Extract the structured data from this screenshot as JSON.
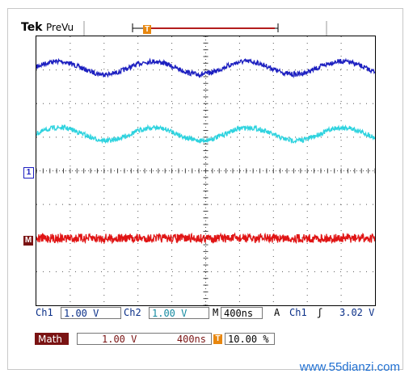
{
  "header": {
    "brand": "Tek",
    "mode": "PreVu"
  },
  "markers": {
    "trigger": "T",
    "ch1": "1",
    "math": "M"
  },
  "status": {
    "ch1_label": "Ch1",
    "ch1_scale": "1.00 V",
    "ch2_label": "Ch2",
    "ch2_scale": "1.00 V",
    "m_label": "M",
    "timebase": "400ns",
    "trig_mode": "A",
    "trig_source": "Ch1",
    "trig_slope": "ʃ",
    "trig_level": "3.02 V"
  },
  "math_bar": {
    "label": "Math",
    "scale": "1.00 V",
    "timebase": "400ns",
    "t_icon": "T",
    "trigger_pos": "10.00 %"
  },
  "watermark": "www.55dianzi.com",
  "colors": {
    "ch1": "#1c1fc0",
    "ch2": "#2ed3df",
    "math": "#e01414",
    "label_bg": "#7a1313"
  }
}
